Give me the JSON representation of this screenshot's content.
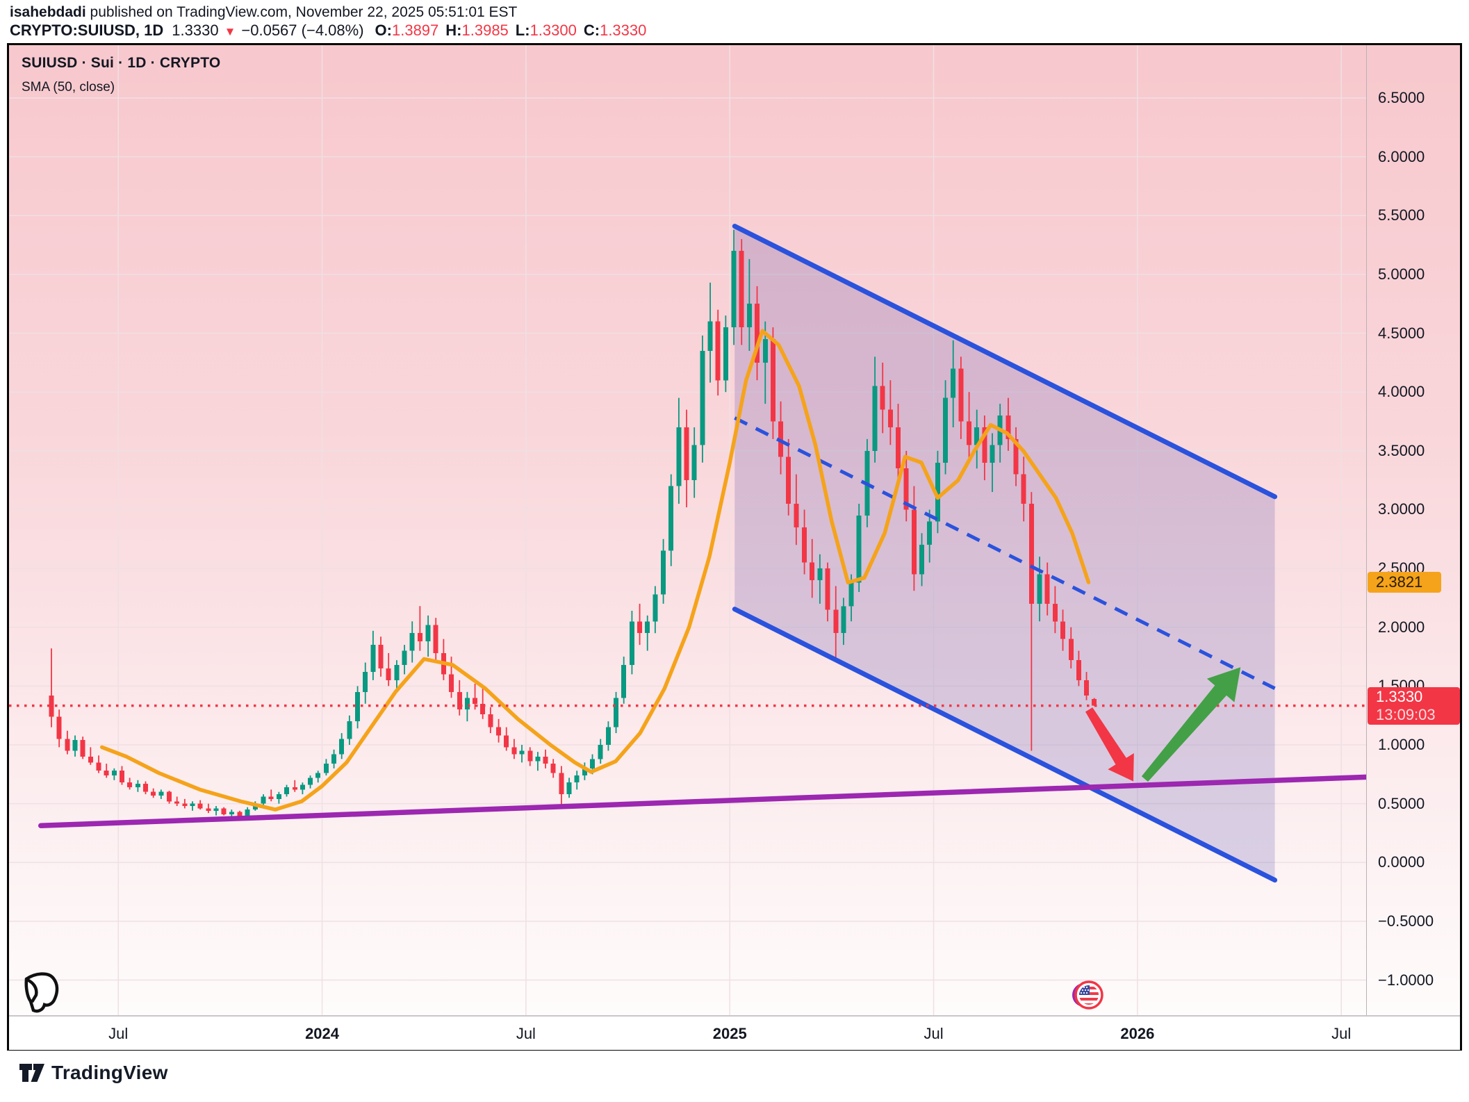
{
  "header": {
    "author": "isahebdadi",
    "rest": " published on TradingView.com, November 22, 2025 05:51:01 EST"
  },
  "symbol_line": {
    "symbol": "CRYPTO:SUIUSD, 1D",
    "last": "1.3330",
    "direction_icon": "down-triangle",
    "change": "−0.0567 (−4.08%)",
    "o_label": "O:",
    "o": "1.3897",
    "h_label": "H:",
    "h": "1.3985",
    "l_label": "L:",
    "l": "1.3300",
    "c_label": "C:",
    "c": "1.3330"
  },
  "legend": {
    "title": "SUIUSD · Sui · 1D · CRYPTO",
    "indicator": "SMA (50, close)"
  },
  "axis_labels": {
    "sma_value": "2.3821",
    "last_price": "1.3330",
    "countdown": "13:09:03"
  },
  "watermark_text": "TradingView",
  "chart_data": {
    "type": "candlestick",
    "title": "SUIUSD · Sui · 1D · CRYPTO",
    "x_unit": "decimal_year",
    "xlim": [
      2023.232,
      2026.561
    ],
    "ylim": [
      -1.298,
      6.949
    ],
    "grid": true,
    "price_ticks": [
      {
        "p": 6.5,
        "label": "6.5000"
      },
      {
        "p": 6.0,
        "label": "6.0000"
      },
      {
        "p": 5.5,
        "label": "5.5000"
      },
      {
        "p": 5.0,
        "label": "5.0000"
      },
      {
        "p": 4.5,
        "label": "4.5000"
      },
      {
        "p": 4.0,
        "label": "4.0000"
      },
      {
        "p": 3.5,
        "label": "3.5000"
      },
      {
        "p": 3.0,
        "label": "3.0000"
      },
      {
        "p": 2.5,
        "label": "2.5000"
      },
      {
        "p": 2.0,
        "label": "2.0000"
      },
      {
        "p": 1.5,
        "label": "1.5000"
      },
      {
        "p": 1.0,
        "label": "1.0000"
      },
      {
        "p": 0.5,
        "label": "0.5000"
      },
      {
        "p": 0.0,
        "label": "0.0000"
      },
      {
        "p": -0.5,
        "label": "−0.5000"
      },
      {
        "p": -1.0,
        "label": "−1.0000"
      }
    ],
    "time_ticks": [
      {
        "t": 2023.5,
        "label": "Jul",
        "bold": false
      },
      {
        "t": 2024.0,
        "label": "2024",
        "bold": true
      },
      {
        "t": 2024.5,
        "label": "Jul",
        "bold": false
      },
      {
        "t": 2025.0,
        "label": "2025",
        "bold": true
      },
      {
        "t": 2025.5,
        "label": "Jul",
        "bold": false
      },
      {
        "t": 2026.0,
        "label": "2026",
        "bold": true
      },
      {
        "t": 2026.5,
        "label": "Jul",
        "bold": false
      }
    ],
    "candles": [
      [
        2023.336,
        1.42,
        1.82,
        1.15,
        1.24
      ],
      [
        2023.355,
        1.24,
        1.3,
        0.98,
        1.05
      ],
      [
        2023.375,
        1.05,
        1.12,
        0.92,
        0.95
      ],
      [
        2023.394,
        0.95,
        1.08,
        0.9,
        1.04
      ],
      [
        2023.413,
        1.04,
        1.07,
        0.88,
        0.9
      ],
      [
        2023.432,
        0.9,
        0.98,
        0.83,
        0.85
      ],
      [
        2023.452,
        0.85,
        0.91,
        0.76,
        0.78
      ],
      [
        2023.471,
        0.78,
        0.84,
        0.72,
        0.74
      ],
      [
        2023.49,
        0.74,
        0.8,
        0.7,
        0.78
      ],
      [
        2023.509,
        0.78,
        0.82,
        0.66,
        0.68
      ],
      [
        2023.528,
        0.68,
        0.72,
        0.62,
        0.64
      ],
      [
        2023.548,
        0.64,
        0.7,
        0.6,
        0.67
      ],
      [
        2023.567,
        0.67,
        0.69,
        0.58,
        0.6
      ],
      [
        2023.586,
        0.6,
        0.63,
        0.55,
        0.57
      ],
      [
        2023.605,
        0.57,
        0.62,
        0.54,
        0.6
      ],
      [
        2023.625,
        0.6,
        0.61,
        0.5,
        0.52
      ],
      [
        2023.644,
        0.52,
        0.56,
        0.48,
        0.5
      ],
      [
        2023.663,
        0.5,
        0.54,
        0.46,
        0.48
      ],
      [
        2023.682,
        0.48,
        0.52,
        0.44,
        0.5
      ],
      [
        2023.701,
        0.5,
        0.53,
        0.45,
        0.46
      ],
      [
        2023.721,
        0.46,
        0.5,
        0.42,
        0.44
      ],
      [
        2023.74,
        0.44,
        0.48,
        0.4,
        0.46
      ],
      [
        2023.759,
        0.46,
        0.47,
        0.4,
        0.41
      ],
      [
        2023.778,
        0.41,
        0.45,
        0.37,
        0.43
      ],
      [
        2023.798,
        0.43,
        0.44,
        0.36,
        0.38
      ],
      [
        2023.817,
        0.38,
        0.47,
        0.37,
        0.45
      ],
      [
        2023.836,
        0.45,
        0.52,
        0.44,
        0.5
      ],
      [
        2023.856,
        0.5,
        0.58,
        0.48,
        0.56
      ],
      [
        2023.875,
        0.56,
        0.62,
        0.52,
        0.54
      ],
      [
        2023.894,
        0.54,
        0.6,
        0.5,
        0.58
      ],
      [
        2023.913,
        0.58,
        0.66,
        0.56,
        0.64
      ],
      [
        2023.933,
        0.64,
        0.7,
        0.6,
        0.62
      ],
      [
        2023.952,
        0.62,
        0.68,
        0.58,
        0.66
      ],
      [
        2023.971,
        0.66,
        0.74,
        0.63,
        0.72
      ],
      [
        2023.99,
        0.72,
        0.78,
        0.68,
        0.76
      ],
      [
        2024.01,
        0.76,
        0.88,
        0.74,
        0.84
      ],
      [
        2024.029,
        0.84,
        0.96,
        0.8,
        0.92
      ],
      [
        2024.048,
        0.92,
        1.1,
        0.88,
        1.05
      ],
      [
        2024.067,
        1.05,
        1.25,
        1.0,
        1.2
      ],
      [
        2024.087,
        1.2,
        1.5,
        1.14,
        1.45
      ],
      [
        2024.106,
        1.45,
        1.7,
        1.35,
        1.62
      ],
      [
        2024.125,
        1.62,
        1.97,
        1.55,
        1.85
      ],
      [
        2024.144,
        1.85,
        1.92,
        1.58,
        1.65
      ],
      [
        2024.163,
        1.65,
        1.78,
        1.5,
        1.55
      ],
      [
        2024.183,
        1.55,
        1.72,
        1.48,
        1.68
      ],
      [
        2024.202,
        1.68,
        1.85,
        1.6,
        1.8
      ],
      [
        2024.221,
        1.8,
        2.05,
        1.7,
        1.95
      ],
      [
        2024.24,
        1.95,
        2.18,
        1.8,
        1.88
      ],
      [
        2024.26,
        1.88,
        2.1,
        1.75,
        2.02
      ],
      [
        2024.279,
        2.02,
        2.08,
        1.7,
        1.78
      ],
      [
        2024.298,
        1.78,
        1.9,
        1.55,
        1.6
      ],
      [
        2024.317,
        1.6,
        1.75,
        1.4,
        1.45
      ],
      [
        2024.337,
        1.45,
        1.55,
        1.25,
        1.3
      ],
      [
        2024.356,
        1.3,
        1.45,
        1.2,
        1.4
      ],
      [
        2024.375,
        1.4,
        1.52,
        1.3,
        1.35
      ],
      [
        2024.394,
        1.35,
        1.48,
        1.22,
        1.26
      ],
      [
        2024.413,
        1.26,
        1.32,
        1.1,
        1.15
      ],
      [
        2024.433,
        1.15,
        1.22,
        1.02,
        1.08
      ],
      [
        2024.452,
        1.08,
        1.15,
        0.95,
        0.98
      ],
      [
        2024.471,
        0.98,
        1.05,
        0.88,
        0.92
      ],
      [
        2024.49,
        0.92,
        1.0,
        0.85,
        0.95
      ],
      [
        2024.51,
        0.95,
        0.98,
        0.82,
        0.86
      ],
      [
        2024.529,
        0.86,
        0.94,
        0.78,
        0.9
      ],
      [
        2024.548,
        0.9,
        0.96,
        0.8,
        0.84
      ],
      [
        2024.567,
        0.84,
        0.88,
        0.72,
        0.76
      ],
      [
        2024.587,
        0.76,
        0.82,
        0.47,
        0.58
      ],
      [
        2024.606,
        0.58,
        0.72,
        0.55,
        0.68
      ],
      [
        2024.625,
        0.68,
        0.78,
        0.62,
        0.74
      ],
      [
        2024.644,
        0.74,
        0.85,
        0.7,
        0.8
      ],
      [
        2024.663,
        0.8,
        0.92,
        0.75,
        0.88
      ],
      [
        2024.683,
        0.88,
        1.05,
        0.84,
        1.0
      ],
      [
        2024.702,
        1.0,
        1.2,
        0.95,
        1.15
      ],
      [
        2024.721,
        1.15,
        1.45,
        1.1,
        1.4
      ],
      [
        2024.74,
        1.4,
        1.75,
        1.35,
        1.68
      ],
      [
        2024.76,
        1.68,
        2.14,
        1.6,
        2.05
      ],
      [
        2024.779,
        2.05,
        2.2,
        1.85,
        1.95
      ],
      [
        2024.798,
        1.95,
        2.1,
        1.8,
        2.05
      ],
      [
        2024.817,
        2.05,
        2.35,
        1.95,
        2.28
      ],
      [
        2024.837,
        2.28,
        2.75,
        2.2,
        2.65
      ],
      [
        2024.856,
        2.65,
        3.3,
        2.52,
        3.2
      ],
      [
        2024.875,
        3.2,
        3.95,
        3.05,
        3.7
      ],
      [
        2024.894,
        3.7,
        3.85,
        3.02,
        3.25
      ],
      [
        2024.913,
        3.25,
        3.7,
        3.1,
        3.55
      ],
      [
        2024.933,
        3.55,
        4.48,
        3.4,
        4.35
      ],
      [
        2024.952,
        4.35,
        4.93,
        4.08,
        4.6
      ],
      [
        2024.971,
        4.6,
        4.7,
        3.97,
        4.1
      ],
      [
        2024.99,
        4.1,
        4.65,
        4.0,
        4.55
      ],
      [
        2025.01,
        4.55,
        5.38,
        4.4,
        5.2
      ],
      [
        2025.029,
        5.2,
        5.3,
        4.4,
        4.55
      ],
      [
        2025.048,
        4.55,
        5.13,
        4.35,
        4.75
      ],
      [
        2025.067,
        4.75,
        4.9,
        4.1,
        4.25
      ],
      [
        2025.087,
        4.25,
        4.6,
        3.9,
        4.45
      ],
      [
        2025.106,
        4.45,
        4.55,
        3.6,
        3.75
      ],
      [
        2025.125,
        3.75,
        3.92,
        3.3,
        3.45
      ],
      [
        2025.144,
        3.45,
        3.6,
        2.95,
        3.05
      ],
      [
        2025.163,
        3.05,
        3.3,
        2.7,
        2.85
      ],
      [
        2025.183,
        2.85,
        3.0,
        2.45,
        2.55
      ],
      [
        2025.202,
        2.55,
        2.75,
        2.25,
        2.4
      ],
      [
        2025.221,
        2.4,
        2.62,
        2.2,
        2.5
      ],
      [
        2025.24,
        2.5,
        2.55,
        2.05,
        2.15
      ],
      [
        2025.26,
        2.15,
        2.35,
        1.74,
        1.95
      ],
      [
        2025.279,
        1.95,
        2.25,
        1.85,
        2.18
      ],
      [
        2025.298,
        2.18,
        2.45,
        2.05,
        2.38
      ],
      [
        2025.317,
        2.38,
        3.05,
        2.3,
        2.95
      ],
      [
        2025.337,
        2.95,
        3.6,
        2.85,
        3.5
      ],
      [
        2025.356,
        3.5,
        4.3,
        3.4,
        4.05
      ],
      [
        2025.375,
        4.05,
        4.25,
        3.65,
        3.85
      ],
      [
        2025.394,
        3.85,
        4.1,
        3.55,
        3.7
      ],
      [
        2025.413,
        3.7,
        3.9,
        3.2,
        3.35
      ],
      [
        2025.433,
        3.35,
        3.5,
        2.9,
        3.0
      ],
      [
        2025.452,
        3.0,
        3.2,
        2.31,
        2.45
      ],
      [
        2025.471,
        2.45,
        2.8,
        2.35,
        2.7
      ],
      [
        2025.49,
        2.7,
        3.0,
        2.55,
        2.9
      ],
      [
        2025.51,
        2.9,
        3.5,
        2.8,
        3.4
      ],
      [
        2025.529,
        3.4,
        4.1,
        3.3,
        3.95
      ],
      [
        2025.548,
        3.95,
        4.44,
        3.7,
        4.2
      ],
      [
        2025.567,
        4.2,
        4.3,
        3.6,
        3.75
      ],
      [
        2025.587,
        3.75,
        4.0,
        3.4,
        3.55
      ],
      [
        2025.606,
        3.55,
        3.85,
        3.35,
        3.7
      ],
      [
        2025.625,
        3.7,
        3.8,
        3.25,
        3.4
      ],
      [
        2025.644,
        3.4,
        3.65,
        3.15,
        3.55
      ],
      [
        2025.663,
        3.55,
        3.9,
        3.4,
        3.8
      ],
      [
        2025.683,
        3.8,
        3.95,
        3.5,
        3.6
      ],
      [
        2025.702,
        3.6,
        3.7,
        3.2,
        3.3
      ],
      [
        2025.721,
        3.3,
        3.45,
        2.9,
        3.05
      ],
      [
        2025.74,
        3.05,
        3.15,
        0.95,
        2.2
      ],
      [
        2025.76,
        2.2,
        2.6,
        2.05,
        2.45
      ],
      [
        2025.779,
        2.45,
        2.55,
        2.1,
        2.2
      ],
      [
        2025.798,
        2.2,
        2.35,
        1.95,
        2.05
      ],
      [
        2025.817,
        2.05,
        2.15,
        1.8,
        1.9
      ],
      [
        2025.837,
        1.9,
        2.0,
        1.65,
        1.72
      ],
      [
        2025.856,
        1.72,
        1.8,
        1.5,
        1.55
      ],
      [
        2025.875,
        1.55,
        1.62,
        1.38,
        1.42
      ],
      [
        2025.894,
        1.3897,
        1.3985,
        1.33,
        1.333
      ]
    ],
    "sma": {
      "period": 50,
      "source": "close",
      "last_value": 2.3821,
      "points": [
        [
          2023.46,
          0.98
        ],
        [
          2023.52,
          0.9
        ],
        [
          2023.6,
          0.76
        ],
        [
          2023.7,
          0.62
        ],
        [
          2023.8,
          0.52
        ],
        [
          2023.885,
          0.45
        ],
        [
          2023.95,
          0.52
        ],
        [
          2024.0,
          0.65
        ],
        [
          2024.06,
          0.85
        ],
        [
          2024.12,
          1.15
        ],
        [
          2024.18,
          1.45
        ],
        [
          2024.25,
          1.73
        ],
        [
          2024.32,
          1.68
        ],
        [
          2024.4,
          1.48
        ],
        [
          2024.48,
          1.22
        ],
        [
          2024.56,
          1.0
        ],
        [
          2024.62,
          0.85
        ],
        [
          2024.66,
          0.77
        ],
        [
          2024.72,
          0.86
        ],
        [
          2024.78,
          1.1
        ],
        [
          2024.84,
          1.48
        ],
        [
          2024.9,
          2.0
        ],
        [
          2024.95,
          2.6
        ],
        [
          2025.0,
          3.4
        ],
        [
          2025.04,
          4.1
        ],
        [
          2025.08,
          4.52
        ],
        [
          2025.12,
          4.4
        ],
        [
          2025.17,
          4.05
        ],
        [
          2025.21,
          3.55
        ],
        [
          2025.25,
          2.9
        ],
        [
          2025.29,
          2.38
        ],
        [
          2025.33,
          2.42
        ],
        [
          2025.38,
          2.8
        ],
        [
          2025.43,
          3.45
        ],
        [
          2025.47,
          3.4
        ],
        [
          2025.51,
          3.1
        ],
        [
          2025.56,
          3.25
        ],
        [
          2025.6,
          3.5
        ],
        [
          2025.64,
          3.72
        ],
        [
          2025.68,
          3.65
        ],
        [
          2025.72,
          3.5
        ],
        [
          2025.76,
          3.3
        ],
        [
          2025.8,
          3.1
        ],
        [
          2025.84,
          2.8
        ],
        [
          2025.88,
          2.3821
        ]
      ]
    },
    "price_line": {
      "value": 1.333,
      "style": "dotted",
      "color": "#f23645"
    },
    "channel": {
      "upper": {
        "t1": 2025.012,
        "p1": 5.41,
        "t2": 2026.337,
        "p2": 3.11
      },
      "middle": {
        "t1": 2025.012,
        "p1": 3.78,
        "t2": 2026.337,
        "p2": 1.48,
        "style": "dashed"
      },
      "lower": {
        "t1": 2025.012,
        "p1": 2.154,
        "t2": 2026.337,
        "p2": -0.15
      }
    },
    "trendline": {
      "t1": 2023.31,
      "p1": 0.313,
      "t2": 2026.56,
      "p2": 0.726
    },
    "arrows": [
      {
        "dir": "down",
        "t1": 2025.881,
        "p1": 1.3,
        "t2": 2025.99,
        "p2": 0.69
      },
      {
        "dir": "up",
        "t1": 2026.018,
        "p1": 0.71,
        "t2": 2026.253,
        "p2": 1.66
      }
    ],
    "marker_flag": {
      "t": 2025.877,
      "country": "US"
    },
    "colors": {
      "up": "#089981",
      "down": "#f23645",
      "sma": "#f5a31a",
      "channel": "#2a52dd",
      "channel_fill": "rgba(58,48,160,0.18)",
      "trend": "#9c27b0",
      "arrow_up": "#43a047",
      "arrow_down": "#f23645",
      "grid": "#efe0e3",
      "bg_top": "#f7c8cd",
      "bg_bottom": "#ffffff"
    }
  }
}
